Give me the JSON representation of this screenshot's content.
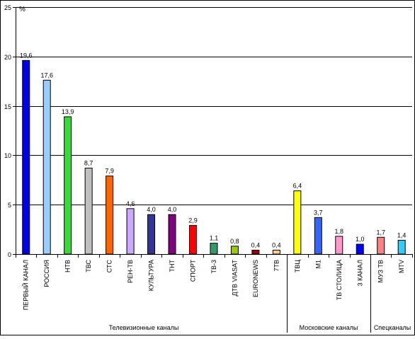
{
  "chart_data": {
    "type": "bar",
    "unit_label": "%",
    "ylim": [
      0,
      25
    ],
    "y_ticks": [
      0,
      5,
      10,
      15,
      20,
      25
    ],
    "grid": true,
    "categories": [
      "ПЕРВЫЙ КАНАЛ",
      "РОССИЯ",
      "НТВ",
      "ТВС",
      "СТС",
      "РЕН-ТВ",
      "КУЛЬТУРА",
      "ТНТ",
      "СПОРТ",
      "ТВ-3",
      "ДТВ VIASAT",
      "EURONEWS",
      "7ТВ",
      "ТВЦ",
      "М1",
      "ТВ СТОЛИЦА",
      "3 КАНАЛ",
      "МУЗ ТВ",
      "MTV"
    ],
    "values": [
      19.6,
      17.6,
      13.9,
      8.7,
      7.9,
      4.6,
      4.0,
      4.0,
      2.9,
      1.1,
      0.8,
      0.4,
      0.4,
      6.4,
      3.7,
      1.8,
      1.0,
      1.7,
      1.4
    ],
    "value_labels": [
      "19,6",
      "17,6",
      "13,9",
      "8,7",
      "7,9",
      "4,6",
      "4,0",
      "4,0",
      "2,9",
      "1,1",
      "0,8",
      "0,4",
      "0,4",
      "6,4",
      "3,7",
      "1,8",
      "1,0",
      "1,7",
      "1,4"
    ],
    "colors": [
      "#0000e0",
      "#99ccff",
      "#33dd33",
      "#c0c0c0",
      "#ff6600",
      "#ccaaff",
      "#333399",
      "#800080",
      "#ff0000",
      "#339966",
      "#99cc00",
      "#990000",
      "#ffcc99",
      "#ffff00",
      "#3366ff",
      "#ff99cc",
      "#0000ff",
      "#ff8080",
      "#33ccff"
    ],
    "groups": [
      {
        "label": "Телевизионные каналы",
        "count": 13
      },
      {
        "label": "Московские каналы",
        "count": 4
      },
      {
        "label": "Спецканалы",
        "count": 2
      }
    ]
  }
}
